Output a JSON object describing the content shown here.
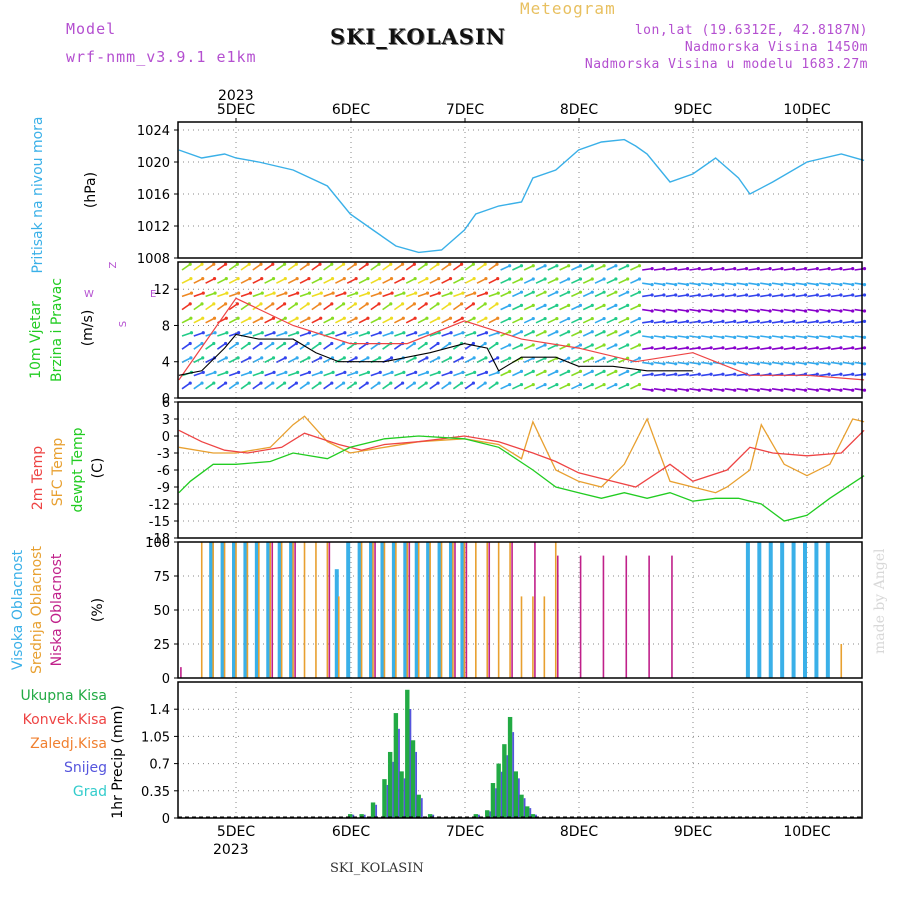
{
  "header": {
    "model_label": "Model",
    "model_name": "wrf-nmm_v3.9.1 e1km",
    "title": "Meteogram",
    "station": "SKI_KOLASIN",
    "lonlat": "lon,lat (19.6312E, 42.8187N)",
    "elevation": "Nadmorska Visina 1450m",
    "model_elevation": "Nadmorska Visina u modelu 1683.27m"
  },
  "time_axis": {
    "year": "2023",
    "days": [
      "5DEC",
      "6DEC",
      "7DEC",
      "8DEC",
      "9DEC",
      "10DEC"
    ]
  },
  "footer": {
    "station": "SKI_KOLASIN",
    "credit": "made by Angel"
  },
  "colors": {
    "pressure": "#3ab0e8",
    "temp2m": "#ee4444",
    "sfc_temp": "#e8a030",
    "dewpoint": "#22cc22",
    "wind_speed": "#000000",
    "gust": "#ee4444",
    "cloud_high": "#3ab0e8",
    "cloud_mid": "#e8a030",
    "cloud_low": "#c0208a",
    "precip_total": "#22aa44",
    "precip_conv": "#ee4444",
    "precip_frozen": "#f08030",
    "precip_snow": "#5555dd",
    "precip_graupel": "#33cccc"
  },
  "chart_data": [
    {
      "type": "line",
      "panel": "pressure",
      "ylabel": [
        "Pritisak na nivou mora",
        "(hPa)"
      ],
      "yticks": [
        "1024",
        "1020",
        "1016",
        "1012",
        "1008"
      ],
      "ylim": [
        1008,
        1025
      ],
      "x_unit": "days from 5DEC 00UTC",
      "series": [
        {
          "x": [
            -0.5,
            -0.3,
            -0.1,
            0.0,
            0.2,
            0.5,
            0.8,
            1.0,
            1.2,
            1.4,
            1.6,
            1.8,
            2.0,
            2.1,
            2.3,
            2.5,
            2.6,
            2.8,
            3.0,
            3.2,
            3.4,
            3.5,
            3.6,
            3.8,
            4.0,
            4.2,
            4.4,
            4.5,
            4.7,
            5.0,
            5.3,
            5.5
          ],
          "y": [
            1021.5,
            1020.5,
            1021,
            1020.5,
            1020,
            1019,
            1017,
            1013.5,
            1011.5,
            1009.5,
            1008.7,
            1009,
            1011.5,
            1013.5,
            1014.5,
            1015,
            1018,
            1019,
            1021.5,
            1022.5,
            1022.8,
            1022,
            1021,
            1017.5,
            1018.5,
            1020.5,
            1018,
            1016,
            1017.5,
            1020,
            1021,
            1020.2
          ]
        }
      ]
    },
    {
      "type": "line",
      "panel": "wind",
      "ylabel": [
        "10m Vjetar",
        "Brzina i Pravac",
        "(m/s)"
      ],
      "yticks": [
        "12",
        "8",
        "4",
        "0"
      ],
      "ylim": [
        0,
        15
      ],
      "compass": [
        "Z",
        "W",
        "E",
        "S"
      ],
      "series": [
        {
          "name": "speed",
          "x": [
            -0.5,
            -0.3,
            -0.1,
            0.0,
            0.2,
            0.5,
            0.7,
            0.9,
            1.1,
            1.3,
            1.5,
            1.7,
            2.0,
            2.2,
            2.3,
            2.5,
            2.8,
            3.0,
            3.3,
            3.6,
            4.0
          ],
          "y": [
            2.5,
            3,
            5.5,
            7,
            6.5,
            6.5,
            5,
            4,
            4,
            4,
            4.5,
            5,
            6,
            5.5,
            3,
            4.5,
            4.5,
            3.5,
            3.5,
            3,
            3
          ]
        },
        {
          "name": "gust",
          "x": [
            -0.5,
            0.0,
            0.5,
            1.0,
            1.5,
            2.0,
            2.5,
            3.0,
            3.5,
            4.0,
            4.5,
            5.0,
            5.5
          ],
          "y": [
            2,
            11,
            8,
            6,
            6,
            8.5,
            6.5,
            5.5,
            4,
            5,
            2.5,
            2.5,
            2
          ]
        }
      ]
    },
    {
      "type": "line",
      "panel": "temperature",
      "ylabel": [
        "2m Temp",
        "SFC Temp",
        "dewpt Temp",
        "(C)"
      ],
      "yticks": [
        "6",
        "3",
        "0",
        "-3",
        "-6",
        "-9",
        "-12",
        "-15",
        "-18"
      ],
      "ylim": [
        -18,
        6
      ],
      "series": [
        {
          "name": "2m Temp",
          "x": [
            -0.5,
            -0.3,
            -0.1,
            0.1,
            0.4,
            0.6,
            0.9,
            1.1,
            1.3,
            1.6,
            2.0,
            2.3,
            2.6,
            2.8,
            3.0,
            3.2,
            3.5,
            3.8,
            4.0,
            4.3,
            4.5,
            4.7,
            5.0,
            5.3,
            5.5
          ],
          "y": [
            1,
            -1,
            -2.5,
            -3,
            -2,
            0.5,
            -1.5,
            -2.5,
            -1.5,
            -1,
            0,
            -1,
            -3,
            -4.5,
            -6.5,
            -7.5,
            -9,
            -5,
            -8,
            -6,
            -2,
            -3,
            -3.5,
            -3,
            1
          ]
        },
        {
          "name": "SFC Temp",
          "x": [
            -0.5,
            -0.2,
            0.0,
            0.3,
            0.5,
            0.6,
            0.8,
            1.0,
            1.3,
            1.6,
            2.0,
            2.3,
            2.5,
            2.6,
            2.8,
            3.0,
            3.2,
            3.4,
            3.5,
            3.6,
            3.8,
            4.0,
            4.2,
            4.3,
            4.5,
            4.6,
            4.8,
            5.0,
            5.2,
            5.4,
            5.5
          ],
          "y": [
            -2,
            -3,
            -3,
            -2,
            2,
            3.5,
            -1,
            -3,
            -2,
            -1,
            -0.5,
            -1.5,
            -4,
            2.5,
            -6,
            -8,
            -9,
            -5,
            -1,
            3,
            -8,
            -9,
            -10,
            -9,
            -6,
            2,
            -5,
            -7,
            -5,
            3,
            2.5
          ]
        },
        {
          "name": "dewpt Temp",
          "x": [
            -0.5,
            -0.4,
            -0.2,
            0.0,
            0.3,
            0.5,
            0.8,
            1.0,
            1.3,
            1.6,
            2.0,
            2.3,
            2.6,
            2.8,
            3.0,
            3.2,
            3.4,
            3.6,
            3.8,
            4.0,
            4.2,
            4.4,
            4.6,
            4.8,
            5.0,
            5.2,
            5.5
          ],
          "y": [
            -10,
            -8,
            -5,
            -5,
            -4.5,
            -3,
            -4,
            -2,
            -0.5,
            0,
            -0.5,
            -2,
            -6,
            -9,
            -10,
            -11,
            -10,
            -11,
            -10,
            -11.5,
            -11,
            -11,
            -12,
            -15,
            -14,
            -11,
            -7
          ]
        }
      ]
    },
    {
      "type": "bar",
      "panel": "cloud",
      "ylabel": [
        "Visoka Oblacnost",
        "Srednja Oblacnost",
        "Niska Oblacnost",
        "(%)"
      ],
      "yticks": [
        "100",
        "75",
        "50",
        "25",
        "0"
      ],
      "ylim": [
        0,
        100
      ],
      "series": [
        {
          "name": "Visoka Oblacnost",
          "x": [
            -0.2,
            -0.1,
            0.0,
            0.1,
            0.2,
            0.3,
            0.4,
            0.5,
            0.9,
            1.0,
            1.1,
            1.2,
            1.3,
            1.4,
            1.5,
            1.6,
            1.7,
            1.8,
            1.9,
            2.0,
            4.5,
            4.6,
            4.7,
            4.8,
            4.9,
            5.0,
            5.1,
            5.2
          ],
          "values": [
            100,
            100,
            100,
            100,
            100,
            100,
            100,
            100,
            80,
            100,
            100,
            100,
            100,
            100,
            100,
            100,
            100,
            100,
            100,
            100,
            100,
            100,
            100,
            100,
            100,
            100,
            100,
            100
          ]
        },
        {
          "name": "Srednja Oblacnost",
          "x": [
            -0.3,
            -0.2,
            -0.1,
            0.0,
            0.1,
            0.2,
            0.3,
            0.4,
            0.5,
            0.6,
            0.7,
            0.8,
            0.9,
            1.1,
            1.2,
            1.3,
            1.4,
            1.5,
            1.6,
            1.7,
            1.8,
            1.9,
            2.0,
            2.1,
            2.2,
            2.3,
            2.4,
            2.5,
            2.6,
            2.7,
            2.8,
            5.3
          ],
          "values": [
            100,
            100,
            100,
            100,
            100,
            100,
            100,
            100,
            100,
            100,
            100,
            100,
            60,
            100,
            100,
            100,
            100,
            100,
            100,
            100,
            100,
            100,
            100,
            100,
            100,
            100,
            100,
            60,
            60,
            60,
            100,
            25
          ]
        },
        {
          "name": "Niska Oblacnost",
          "x": [
            -0.5,
            0.3,
            0.5,
            0.8,
            1.2,
            1.5,
            1.9,
            2.0,
            2.2,
            2.4,
            2.6,
            2.8,
            3.0,
            3.2,
            3.4,
            3.6,
            3.8
          ],
          "values": [
            8,
            100,
            100,
            100,
            100,
            100,
            100,
            100,
            100,
            100,
            100,
            90,
            90,
            90,
            90,
            90,
            90
          ]
        }
      ]
    },
    {
      "type": "bar",
      "panel": "precipitation",
      "ylabel": [
        "1hr Precip (mm)"
      ],
      "yticks": [
        "1.4",
        "1.05",
        "0.7",
        "0.35",
        "0"
      ],
      "ylim": [
        0,
        1.75
      ],
      "legend": [
        "Ukupna Kisa",
        "Konvek.Kisa",
        "Zaledj.Kisa",
        "Snijeg",
        "Grad"
      ],
      "series": [
        {
          "name": "Ukupna Kisa",
          "x": [
            1.0,
            1.1,
            1.2,
            1.3,
            1.35,
            1.4,
            1.45,
            1.5,
            1.55,
            1.6,
            1.7,
            2.1,
            2.2,
            2.25,
            2.3,
            2.35,
            2.4,
            2.45,
            2.5,
            2.55,
            2.6
          ],
          "values": [
            0.05,
            0.05,
            0.2,
            0.5,
            0.85,
            1.35,
            0.6,
            1.65,
            1.0,
            0.3,
            0.05,
            0.05,
            0.1,
            0.45,
            0.7,
            0.95,
            1.3,
            0.6,
            0.3,
            0.15,
            0.05
          ]
        }
      ]
    }
  ]
}
